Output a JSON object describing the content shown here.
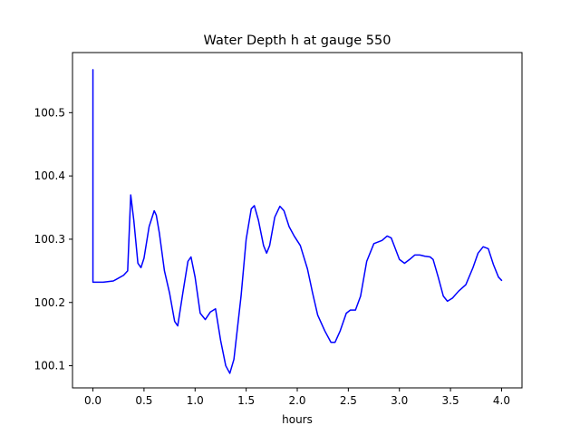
{
  "chart_data": {
    "type": "line",
    "title": "Water Depth h at gauge 550",
    "xlabel": "hours",
    "ylabel": "",
    "xlim": [
      -0.2,
      4.2
    ],
    "ylim": [
      100.065,
      100.595
    ],
    "x_ticks": [
      0.0,
      0.5,
      1.0,
      1.5,
      2.0,
      2.5,
      3.0,
      3.5,
      4.0
    ],
    "x_tick_labels": [
      "0.0",
      "0.5",
      "1.0",
      "1.5",
      "2.0",
      "2.5",
      "3.0",
      "3.5",
      "4.0"
    ],
    "y_ticks": [
      100.1,
      100.2,
      100.3,
      100.4,
      100.5
    ],
    "y_tick_labels": [
      "100.1",
      "100.2",
      "100.3",
      "100.4",
      "100.5"
    ],
    "grid": false,
    "legend": "none",
    "series": [
      {
        "color": "#0000ff",
        "x": [
          0.0,
          0.0,
          0.0,
          0.1,
          0.2,
          0.3,
          0.34,
          0.37,
          0.4,
          0.44,
          0.47,
          0.5,
          0.55,
          0.6,
          0.62,
          0.65,
          0.7,
          0.75,
          0.8,
          0.83,
          0.88,
          0.93,
          0.96,
          1.0,
          1.05,
          1.1,
          1.15,
          1.2,
          1.25,
          1.3,
          1.34,
          1.38,
          1.45,
          1.5,
          1.55,
          1.58,
          1.62,
          1.67,
          1.7,
          1.73,
          1.78,
          1.83,
          1.87,
          1.92,
          1.97,
          2.03,
          2.1,
          2.15,
          2.2,
          2.27,
          2.33,
          2.37,
          2.42,
          2.48,
          2.52,
          2.57,
          2.62,
          2.68,
          2.75,
          2.83,
          2.88,
          2.92,
          2.96,
          3.0,
          3.05,
          3.1,
          3.15,
          3.2,
          3.25,
          3.3,
          3.33,
          3.38,
          3.43,
          3.47,
          3.52,
          3.58,
          3.65,
          3.72,
          3.77,
          3.82,
          3.87,
          3.92,
          3.97,
          4.0
        ],
        "y": [
          100.568,
          100.232,
          100.232,
          100.232,
          100.234,
          100.243,
          100.25,
          100.37,
          100.33,
          100.262,
          100.255,
          100.27,
          100.32,
          100.345,
          100.338,
          100.31,
          100.25,
          100.215,
          100.17,
          100.163,
          100.215,
          100.265,
          100.272,
          100.24,
          100.183,
          100.173,
          100.185,
          100.19,
          100.14,
          100.1,
          100.088,
          100.11,
          100.21,
          100.3,
          100.348,
          100.353,
          100.33,
          100.29,
          100.278,
          100.29,
          100.335,
          100.352,
          100.345,
          100.32,
          100.305,
          100.29,
          100.253,
          100.215,
          100.18,
          100.155,
          100.137,
          100.137,
          100.155,
          100.183,
          100.188,
          100.188,
          100.21,
          100.265,
          100.293,
          100.298,
          100.305,
          100.302,
          100.285,
          100.268,
          100.262,
          100.268,
          100.275,
          100.275,
          100.273,
          100.272,
          100.268,
          100.24,
          100.21,
          100.202,
          100.207,
          100.218,
          100.228,
          100.255,
          100.278,
          100.288,
          100.285,
          100.26,
          100.24,
          100.235
        ]
      }
    ]
  }
}
